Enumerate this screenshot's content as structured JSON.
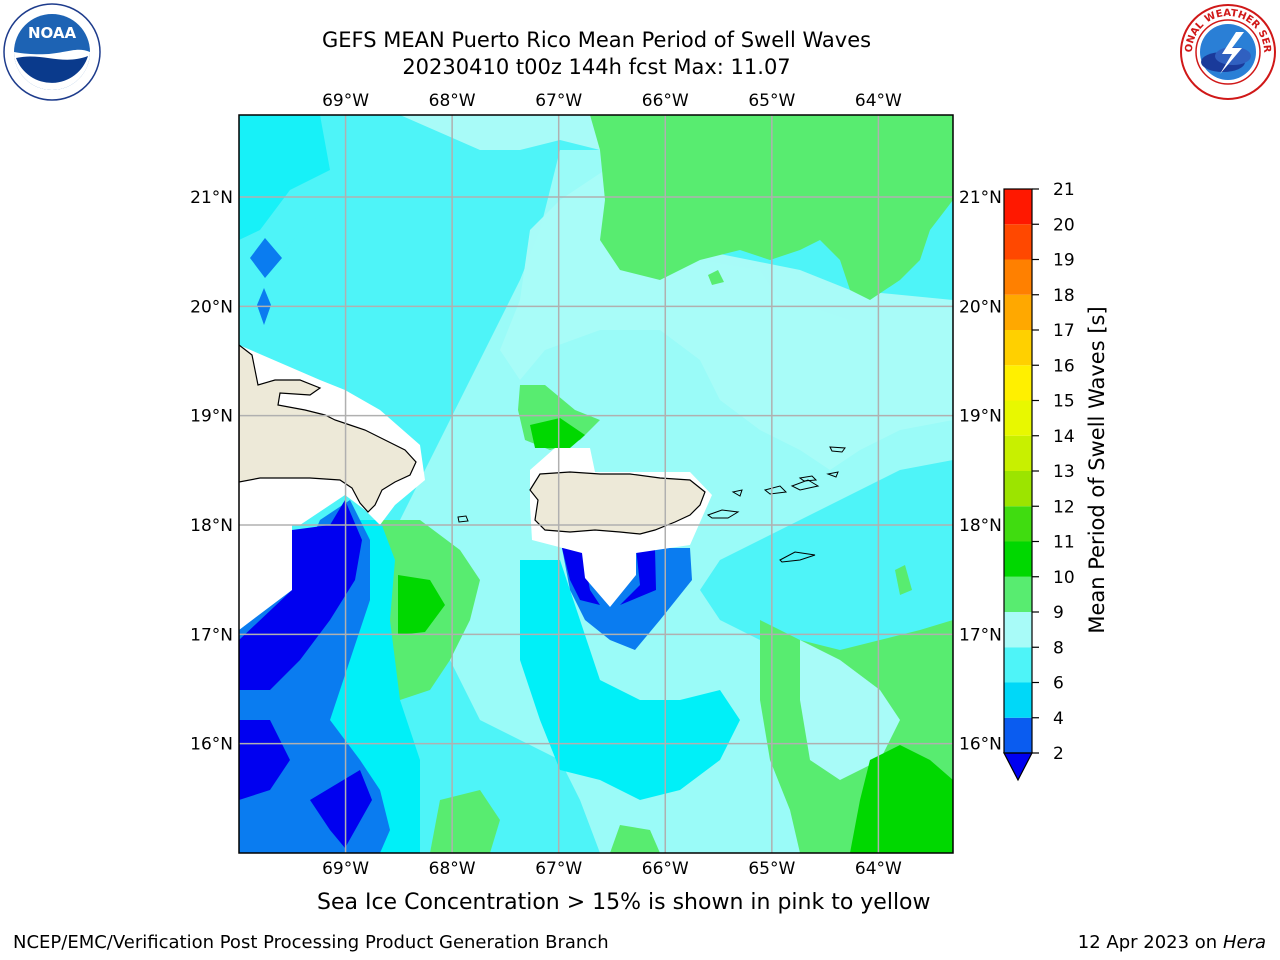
{
  "header": {
    "title_line1": "GEFS MEAN Puerto Rico Mean Period of Swell Waves",
    "title_line2": "20230410 t00z 144h fcst   Max: 11.07"
  },
  "logos": {
    "left": "NOAA",
    "right": "NATIONAL WEATHER SERVICE"
  },
  "map": {
    "lon_labels": [
      "69°W",
      "68°W",
      "67°W",
      "66°W",
      "65°W",
      "64°W"
    ],
    "lat_labels": [
      "21°N",
      "20°N",
      "19°N",
      "18°N",
      "17°N",
      "16°N"
    ],
    "lon_values": [
      -69,
      -68,
      -67,
      -66,
      -65,
      -64
    ],
    "lat_values": [
      21,
      20,
      19,
      18,
      17,
      16
    ],
    "lon_range": [
      -70,
      -63.3
    ],
    "lat_range": [
      15,
      21.75
    ],
    "gridlines": true
  },
  "colorbar": {
    "label": "Mean Period of Swell Waves [s]",
    "ticks": [
      "2",
      "4",
      "6",
      "8",
      "9",
      "10",
      "11",
      "12",
      "13",
      "14",
      "15",
      "16",
      "17",
      "18",
      "19",
      "20",
      "21"
    ],
    "colors": [
      "#0a5cf0",
      "#00d8f8",
      "#4ef4f8",
      "#a8fbf8",
      "#58ec70",
      "#00d800",
      "#40dc10",
      "#9ce400",
      "#c8f000",
      "#e8f800",
      "#fff000",
      "#ffd000",
      "#ffa800",
      "#ff8000",
      "#ff4800",
      "#ff1800"
    ],
    "under_color": "#0000f0"
  },
  "footer": {
    "note": "Sea Ice Concentration > 15% is shown in pink to yellow",
    "left": "NCEP/EMC/Verification Post Processing Product Generation Branch",
    "right_date": "12 Apr 2023 on ",
    "right_host": "Hera"
  }
}
